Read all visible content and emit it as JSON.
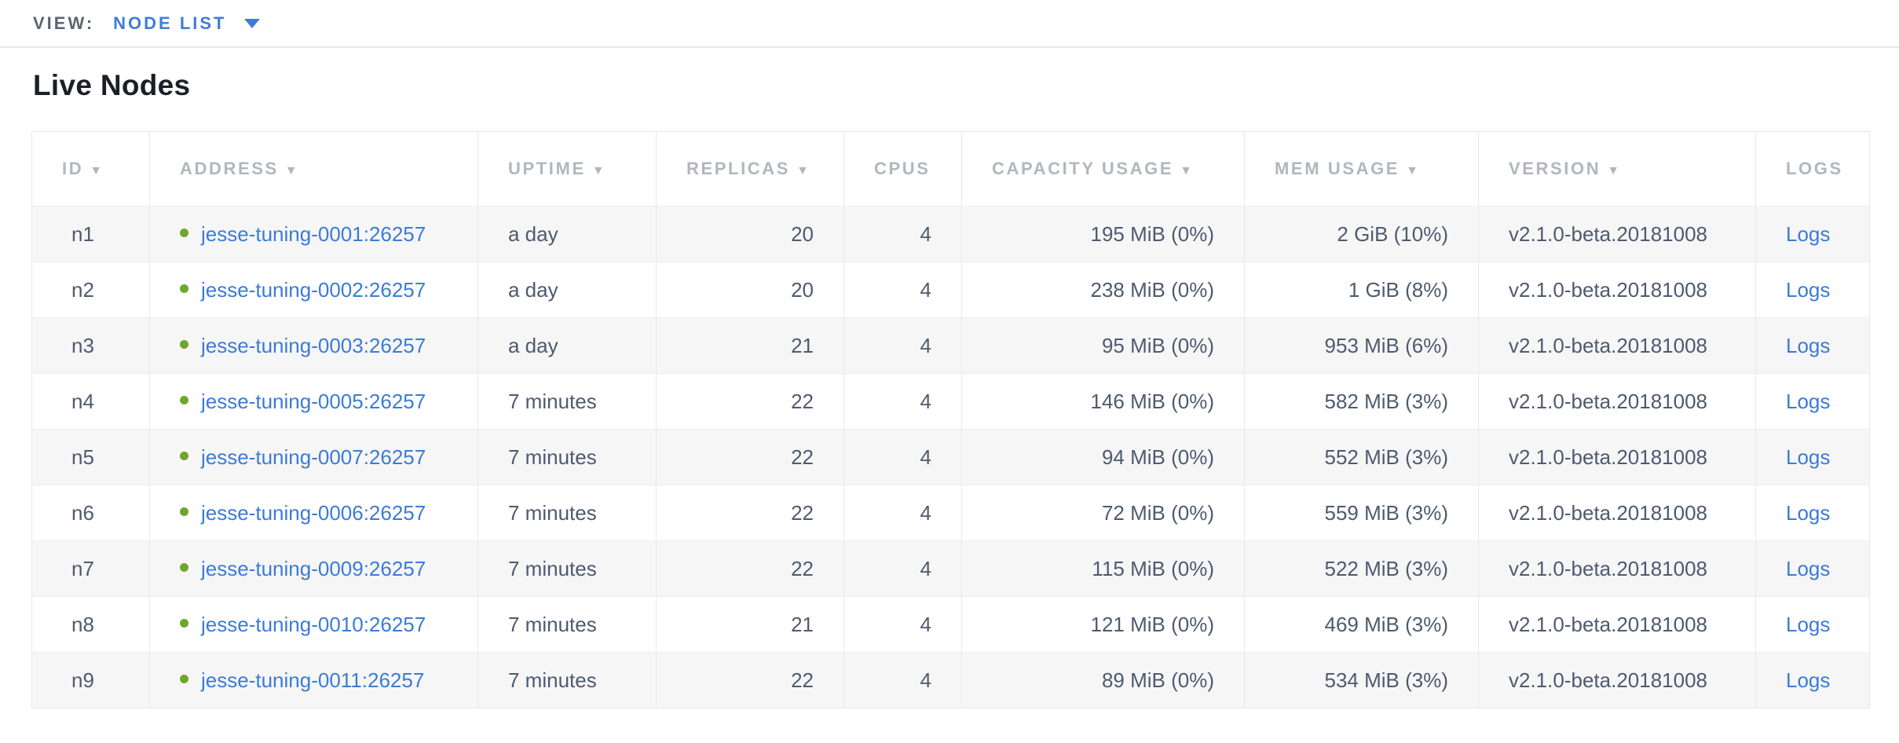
{
  "view_bar": {
    "label": "VIEW:",
    "selected": "NODE LIST"
  },
  "page": {
    "title": "Live Nodes"
  },
  "table": {
    "columns": [
      {
        "label": "ID",
        "sortable": true,
        "sort_icon": "▼"
      },
      {
        "label": "ADDRESS",
        "sortable": true,
        "sort_icon": "▼"
      },
      {
        "label": "UPTIME",
        "sortable": true,
        "sort_icon": "▼"
      },
      {
        "label": "REPLICAS",
        "sortable": true,
        "sort_icon": "▼"
      },
      {
        "label": "CPUS",
        "sortable": false,
        "sort_icon": ""
      },
      {
        "label": "CAPACITY USAGE",
        "sortable": true,
        "sort_icon": "▼"
      },
      {
        "label": "MEM USAGE",
        "sortable": true,
        "sort_icon": "▼"
      },
      {
        "label": "VERSION",
        "sortable": true,
        "sort_icon": "▼"
      },
      {
        "label": "LOGS",
        "sortable": false,
        "sort_icon": ""
      }
    ],
    "rows": [
      {
        "id": "n1",
        "status": "live",
        "address": "jesse-tuning-0001:26257",
        "uptime": "a day",
        "replicas": "20",
        "cpus": "4",
        "capacity_usage": "195 MiB (0%)",
        "mem_usage": "2 GiB (10%)",
        "version": "v2.1.0-beta.20181008",
        "logs_label": "Logs"
      },
      {
        "id": "n2",
        "status": "live",
        "address": "jesse-tuning-0002:26257",
        "uptime": "a day",
        "replicas": "20",
        "cpus": "4",
        "capacity_usage": "238 MiB (0%)",
        "mem_usage": "1 GiB (8%)",
        "version": "v2.1.0-beta.20181008",
        "logs_label": "Logs"
      },
      {
        "id": "n3",
        "status": "live",
        "address": "jesse-tuning-0003:26257",
        "uptime": "a day",
        "replicas": "21",
        "cpus": "4",
        "capacity_usage": "95 MiB (0%)",
        "mem_usage": "953 MiB (6%)",
        "version": "v2.1.0-beta.20181008",
        "logs_label": "Logs"
      },
      {
        "id": "n4",
        "status": "live",
        "address": "jesse-tuning-0005:26257",
        "uptime": "7 minutes",
        "replicas": "22",
        "cpus": "4",
        "capacity_usage": "146 MiB (0%)",
        "mem_usage": "582 MiB (3%)",
        "version": "v2.1.0-beta.20181008",
        "logs_label": "Logs"
      },
      {
        "id": "n5",
        "status": "live",
        "address": "jesse-tuning-0007:26257",
        "uptime": "7 minutes",
        "replicas": "22",
        "cpus": "4",
        "capacity_usage": "94 MiB (0%)",
        "mem_usage": "552 MiB (3%)",
        "version": "v2.1.0-beta.20181008",
        "logs_label": "Logs"
      },
      {
        "id": "n6",
        "status": "live",
        "address": "jesse-tuning-0006:26257",
        "uptime": "7 minutes",
        "replicas": "22",
        "cpus": "4",
        "capacity_usage": "72 MiB (0%)",
        "mem_usage": "559 MiB (3%)",
        "version": "v2.1.0-beta.20181008",
        "logs_label": "Logs"
      },
      {
        "id": "n7",
        "status": "live",
        "address": "jesse-tuning-0009:26257",
        "uptime": "7 minutes",
        "replicas": "22",
        "cpus": "4",
        "capacity_usage": "115 MiB (0%)",
        "mem_usage": "522 MiB (3%)",
        "version": "v2.1.0-beta.20181008",
        "logs_label": "Logs"
      },
      {
        "id": "n8",
        "status": "live",
        "address": "jesse-tuning-0010:26257",
        "uptime": "7 minutes",
        "replicas": "21",
        "cpus": "4",
        "capacity_usage": "121 MiB (0%)",
        "mem_usage": "469 MiB (3%)",
        "version": "v2.1.0-beta.20181008",
        "logs_label": "Logs"
      },
      {
        "id": "n9",
        "status": "live",
        "address": "jesse-tuning-0011:26257",
        "uptime": "7 minutes",
        "replicas": "22",
        "cpus": "4",
        "capacity_usage": "89 MiB (0%)",
        "mem_usage": "534 MiB (3%)",
        "version": "v2.1.0-beta.20181008",
        "logs_label": "Logs"
      }
    ]
  },
  "colors": {
    "accent_blue": "#3b7bd8",
    "status_green": "#6fa62c",
    "header_text_gray": "#b2b6bd",
    "cell_text": "#4e5a70",
    "row_stripe": "#f6f6f6",
    "table_border": "#e7e7e7"
  }
}
